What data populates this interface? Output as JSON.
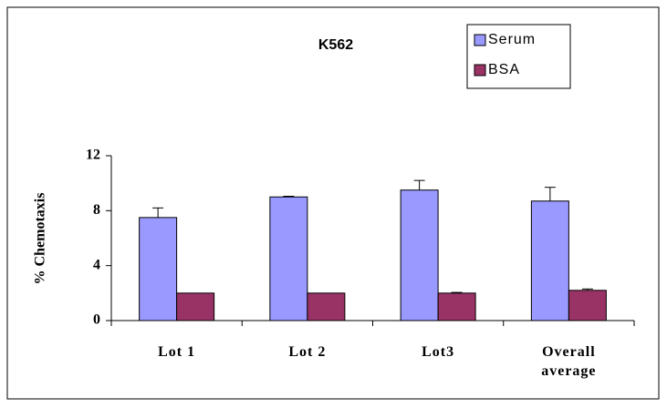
{
  "chart_data": {
    "type": "bar",
    "title": "K562",
    "ylabel": "% Chemotaxis",
    "categories": [
      "Lot 1",
      "Lot 2",
      "Lot3",
      "Overall average"
    ],
    "series": [
      {
        "name": "Serum",
        "color": "#9999ff",
        "values": [
          7.5,
          9.0,
          9.5,
          8.7
        ],
        "errors": [
          0.7,
          0.05,
          0.7,
          1.0
        ]
      },
      {
        "name": "BSA",
        "color": "#993366",
        "values": [
          2.0,
          2.0,
          2.0,
          2.2
        ],
        "errors": [
          0.0,
          0.0,
          0.05,
          0.1
        ]
      }
    ],
    "ylim": [
      0,
      12
    ],
    "yticks": [
      0,
      4,
      8,
      12
    ],
    "grid": false
  }
}
